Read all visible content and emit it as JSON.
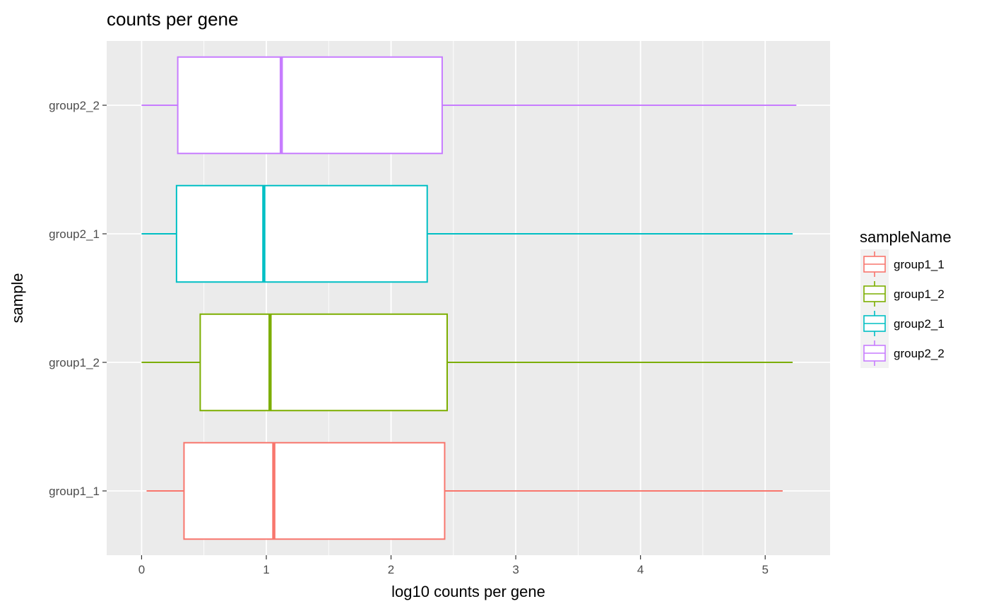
{
  "chart_data": {
    "type": "boxplot",
    "orientation": "horizontal",
    "title": "counts per gene",
    "xlabel": "log10 counts per gene",
    "ylabel": "sample",
    "xlim": [
      -0.28,
      5.52
    ],
    "xticks": [
      0,
      1,
      2,
      3,
      4,
      5
    ],
    "grid": true,
    "legend": {
      "title": "sampleName",
      "position": "right"
    },
    "categories": [
      "group1_1",
      "group1_2",
      "group2_1",
      "group2_2"
    ],
    "series": [
      {
        "name": "group1_1",
        "color": "#F8766D",
        "min": 0.04,
        "q1": 0.34,
        "median": 1.06,
        "q3": 2.43,
        "max": 5.14
      },
      {
        "name": "group1_2",
        "color": "#7CAE00",
        "min": 0.0,
        "q1": 0.47,
        "median": 1.03,
        "q3": 2.45,
        "max": 5.22
      },
      {
        "name": "group2_1",
        "color": "#00BFC4",
        "min": 0.0,
        "q1": 0.28,
        "median": 0.98,
        "q3": 2.29,
        "max": 5.22
      },
      {
        "name": "group2_2",
        "color": "#C77CFF",
        "min": 0.0,
        "q1": 0.29,
        "median": 1.12,
        "q3": 2.41,
        "max": 5.25
      }
    ]
  }
}
